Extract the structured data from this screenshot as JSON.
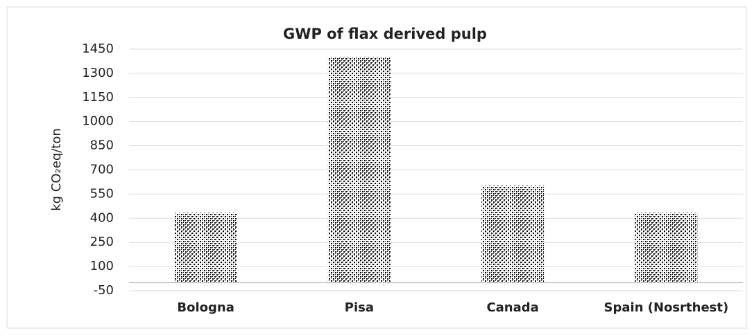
{
  "chart_data": {
    "type": "bar",
    "title": "GWP of flax derived pulp",
    "y_label": "kg CO₂eq/ton",
    "categories": [
      "Bologna",
      "Pisa",
      "Canada",
      "Spain (Nosrthest)"
    ],
    "values": [
      434,
      1401,
      602,
      434
    ],
    "color": "#000000",
    "ylim": [
      -50,
      1450
    ],
    "yticks": [
      -50,
      100,
      250,
      400,
      550,
      700,
      850,
      1000,
      1150,
      1300,
      1450
    ],
    "grid": true
  }
}
